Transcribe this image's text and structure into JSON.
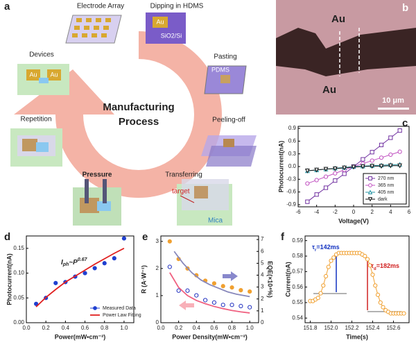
{
  "panel_labels": [
    "a",
    "b",
    "c",
    "d",
    "e",
    "f"
  ],
  "diagram": {
    "center": [
      "Manufacturing",
      "Process"
    ],
    "steps": [
      {
        "label": "Electrode Array"
      },
      {
        "label": "Dipping in HDMS",
        "tags": [
          "Au",
          "SiO2/Si"
        ]
      },
      {
        "label": "Pasting",
        "tags": [
          "PDMS"
        ]
      },
      {
        "label": "Peeling-off"
      },
      {
        "label": "Transferring",
        "tags": [
          "target",
          "Mica"
        ]
      },
      {
        "label": "Pressure"
      },
      {
        "label": "Repetition"
      },
      {
        "label": "Devices",
        "tags": [
          "Au",
          "Au"
        ]
      }
    ]
  },
  "image": {
    "labels": [
      "Au",
      "Au"
    ],
    "scale_bar": "10 μm"
  },
  "chart_data": [
    {
      "type": "line",
      "xlabel": "Voltage(V)",
      "ylabel": "Photocurrent(nA)",
      "xlim": [
        -6,
        6
      ],
      "xticks": [
        -6,
        -4,
        -2,
        0,
        2,
        4,
        6
      ],
      "ylim": [
        -0.95,
        0.95
      ],
      "yticks": [
        0.9,
        0.6,
        0.3,
        {
          "value": 0,
          "label": "0.0"
        },
        -0.3,
        -0.6,
        -0.9
      ],
      "x": [
        -5,
        -4,
        -3,
        -2,
        -1,
        0,
        1,
        2,
        3,
        4,
        5
      ],
      "legend": "lower right",
      "series": [
        {
          "name": "270 nm",
          "color": "#7030a0",
          "marker": "square",
          "mode": "line+markers",
          "filled": false,
          "values": [
            -0.83,
            -0.66,
            -0.5,
            -0.33,
            -0.17,
            0,
            0.17,
            0.34,
            0.51,
            0.68,
            0.85
          ]
        },
        {
          "name": "365 nm",
          "color": "#c050c0",
          "marker": "circle",
          "mode": "line+markers",
          "filled": false,
          "values": [
            -0.4,
            -0.32,
            -0.24,
            -0.16,
            -0.08,
            0,
            0.07,
            0.14,
            0.21,
            0.28,
            0.35
          ]
        },
        {
          "name": "405 nm",
          "color": "#2090a0",
          "marker": "triangle",
          "mode": "line+markers",
          "filled": false,
          "values": [
            -0.1,
            -0.08,
            -0.06,
            -0.04,
            -0.02,
            0,
            0.01,
            0.02,
            0.03,
            0.04,
            0.05
          ]
        },
        {
          "name": "dark",
          "color": "#111111",
          "marker": "triangle-down",
          "mode": "line+markers",
          "filled": false,
          "values": [
            -0.1,
            -0.08,
            -0.06,
            -0.05,
            -0.03,
            -0.01,
            0,
            0.01,
            0.01,
            0.02,
            0.02
          ]
        }
      ]
    },
    {
      "type": "scatter",
      "xlabel": "Power(mW•cm⁻²)",
      "ylabel": "Photocurrent(nA)",
      "xlim": [
        0,
        1.1
      ],
      "xticks": [
        {
          "value": 0,
          "label": "0.0"
        },
        0.2,
        0.4,
        0.6,
        0.8,
        {
          "value": 1,
          "label": "1.0"
        }
      ],
      "ylim": [
        0,
        0.175
      ],
      "yticks": [
        {
          "value": 0,
          "label": "0.00"
        },
        0.05,
        {
          "value": 0.1,
          "label": "0.10"
        },
        0.15
      ],
      "legend": "lower right",
      "annotation": {
        "main": "I",
        "sub": "ph",
        "mid": "~P",
        "sup": "0.67"
      },
      "series": [
        {
          "name": "Measured Data",
          "color": "#2040d0",
          "marker": "circle",
          "mode": "markers",
          "filled": true,
          "x": [
            0.1,
            0.2,
            0.3,
            0.4,
            0.5,
            0.6,
            0.7,
            0.8,
            0.9,
            1.0
          ],
          "values": [
            0.038,
            0.05,
            0.08,
            0.082,
            0.093,
            0.1,
            0.11,
            0.12,
            0.13,
            0.17
          ]
        },
        {
          "name": "Power Law Fitting",
          "color": "#e02020",
          "mode": "line",
          "x": [
            0.1,
            0.2,
            0.3,
            0.4,
            0.5,
            0.6,
            0.7,
            0.8,
            0.9,
            1.0
          ],
          "values": [
            0.032,
            0.051,
            0.067,
            0.082,
            0.094,
            0.106,
            0.118,
            0.129,
            0.14,
            0.15
          ]
        }
      ]
    },
    {
      "type": "scatter",
      "xlabel": "Power Density(mW•cm⁻²)",
      "ylabel": "R (A·W⁻¹)",
      "y2label": "EQE(×10⁴%)",
      "ylabel_color": "#e02020",
      "y2label_color": "#2030c0",
      "xlim": [
        0,
        1.1
      ],
      "xticks": [
        {
          "value": 0,
          "label": "0.0"
        },
        0.2,
        0.4,
        0.6,
        0.8,
        {
          "value": 1,
          "label": "1.0"
        }
      ],
      "ylim": [
        0,
        3.2
      ],
      "yticks": [
        0,
        1,
        2,
        3
      ],
      "y2lim": [
        0,
        7.3
      ],
      "y2ticks": [
        0,
        1,
        2,
        3,
        4,
        5,
        6,
        7
      ],
      "series": [
        {
          "color": "#f0a030",
          "marker": "circle",
          "mode": "markers",
          "filled": true,
          "x": [
            0.1,
            0.2,
            0.3,
            0.4,
            0.5,
            0.6,
            0.7,
            0.8,
            0.9,
            1.0
          ],
          "values": [
            3.0,
            2.35,
            2.0,
            1.75,
            1.55,
            1.45,
            1.35,
            1.3,
            1.2,
            1.15
          ]
        },
        {
          "color": "#2030c0",
          "marker": "circle",
          "mode": "markers",
          "filled": false,
          "axis": "y2",
          "x": [
            0.1,
            0.2,
            0.3,
            0.4,
            0.5,
            0.6,
            0.7,
            0.8,
            0.9,
            1.0
          ],
          "values": [
            4.7,
            2.7,
            2.7,
            2.3,
            1.9,
            1.7,
            1.5,
            1.5,
            1.4,
            1.3
          ]
        },
        {
          "color": "#f06080",
          "mode": "line",
          "x": [
            0.1,
            0.2,
            0.3,
            0.4,
            0.5,
            0.6,
            0.7,
            0.8,
            0.9,
            1.0
          ],
          "values": [
            1.85,
            1.3,
            1.0,
            0.82,
            0.7,
            0.6,
            0.52,
            0.45,
            0.4,
            0.36
          ]
        },
        {
          "color": "#8888bb",
          "mode": "line",
          "axis": "y2",
          "x": [
            0.15,
            0.25,
            0.35,
            0.45,
            0.55,
            0.65,
            0.75,
            0.85,
            1.0
          ],
          "values": [
            6.0,
            5.0,
            4.2,
            3.6,
            3.2,
            2.9,
            2.6,
            2.4,
            2.2
          ]
        }
      ]
    },
    {
      "type": "line",
      "xlabel": "Time(s)",
      "ylabel": "Current(nA)",
      "xlim": [
        151.75,
        152.75
      ],
      "xticks": [
        151.8,
        {
          "value": 152,
          "label": "152.0"
        },
        152.2,
        152.4,
        152.6
      ],
      "ylim": [
        0.537,
        0.593
      ],
      "yticks": [
        0.54,
        0.55,
        0.56,
        0.57,
        0.58,
        0.59
      ],
      "annotations": [
        {
          "main": "τ",
          "sub": "r",
          "rest": "=142ms",
          "color": "#1030c0"
        },
        {
          "main": "τ",
          "sub": "d",
          "rest": "=182ms",
          "color": "#d02020"
        }
      ],
      "x": [
        151.8,
        151.825,
        151.85,
        151.875,
        151.9,
        151.925,
        151.95,
        151.975,
        152.0,
        152.025,
        152.05,
        152.075,
        152.1,
        152.125,
        152.15,
        152.175,
        152.2,
        152.225,
        152.25,
        152.275,
        152.3,
        152.325,
        152.35,
        152.375,
        152.4,
        152.425,
        152.45,
        152.475,
        152.5,
        152.525,
        152.55,
        152.575,
        152.6,
        152.625,
        152.65,
        152.675,
        152.7
      ],
      "series": [
        {
          "color": "#f0a030",
          "marker": "circle",
          "mode": "line+markers",
          "filled": false,
          "values": [
            0.551,
            0.551,
            0.552,
            0.553,
            0.556,
            0.561,
            0.567,
            0.573,
            0.577,
            0.579,
            0.581,
            0.582,
            0.582,
            0.582,
            0.582,
            0.582,
            0.582,
            0.582,
            0.582,
            0.582,
            0.581,
            0.58,
            0.578,
            0.574,
            0.568,
            0.561,
            0.555,
            0.55,
            0.547,
            0.545,
            0.544,
            0.543,
            0.543,
            0.543,
            0.543,
            0.543,
            0.543
          ]
        }
      ]
    }
  ]
}
